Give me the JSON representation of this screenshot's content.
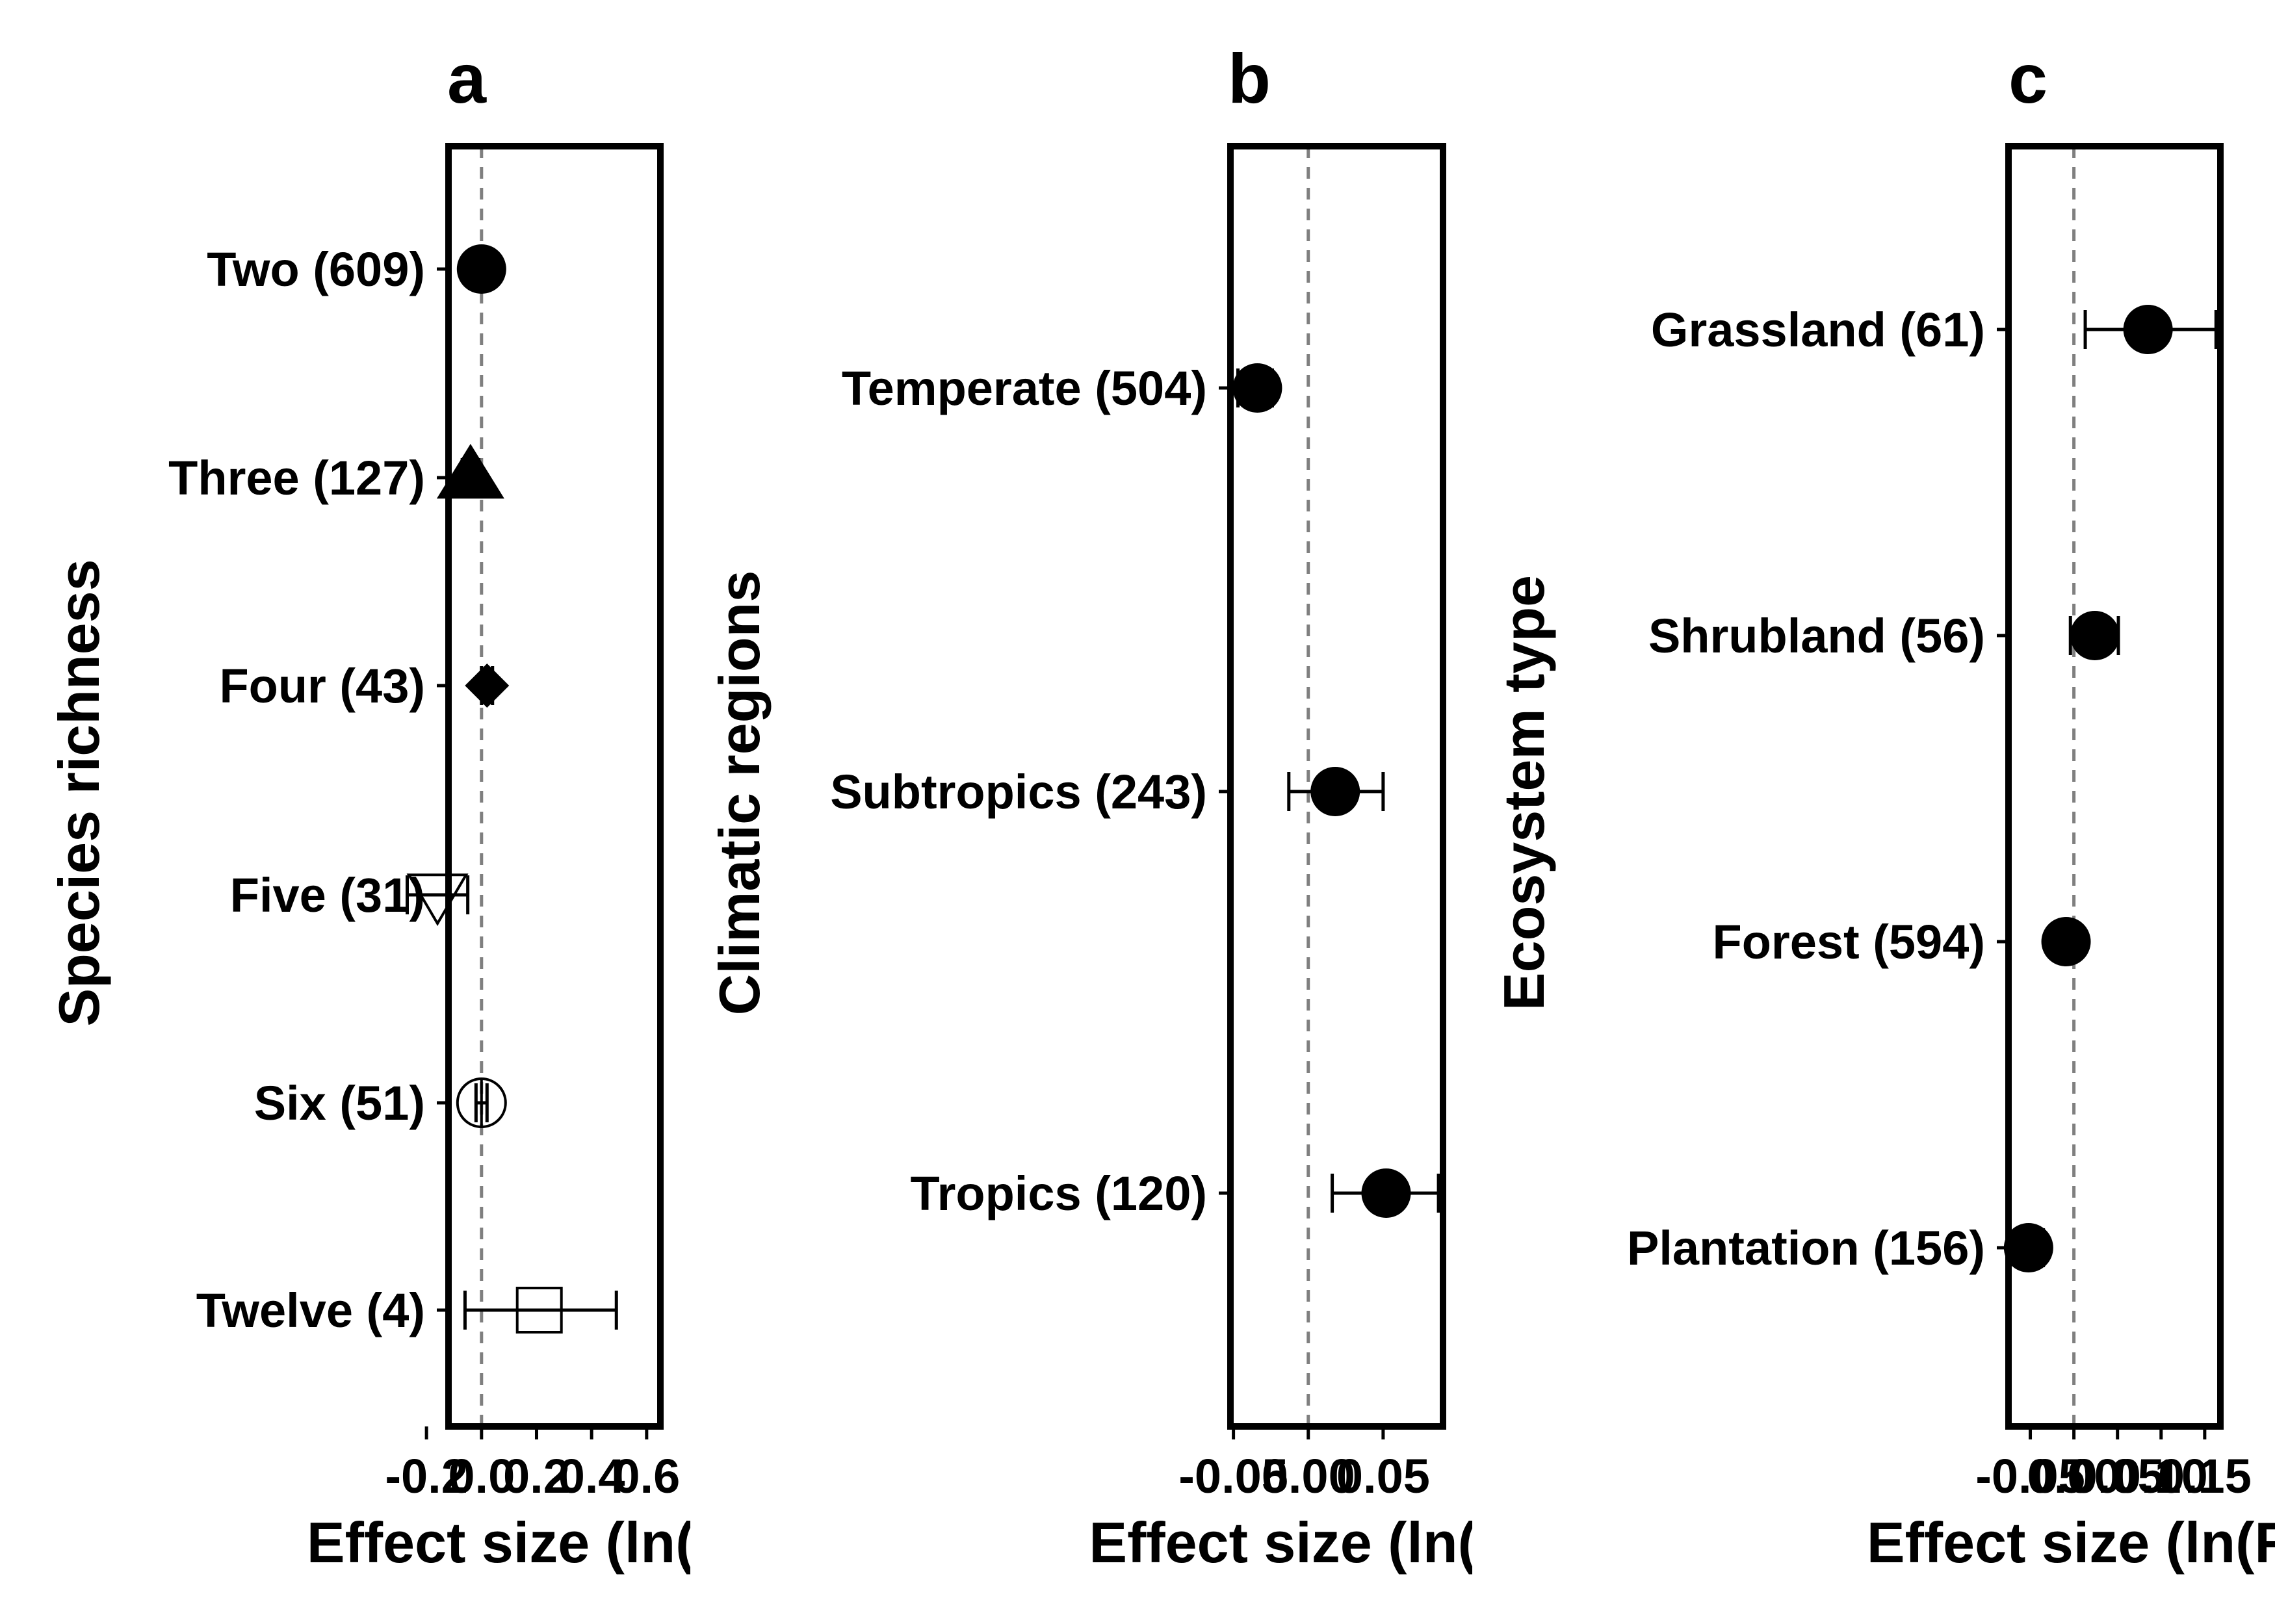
{
  "chart_data": [
    {
      "type": "scatter",
      "panel_label": "a",
      "ylabel": "Species richness",
      "xlabel": "Effect size (ln(RR))",
      "xlim": [
        -0.12,
        0.65
      ],
      "xticks": [
        "-0.2",
        "0.0",
        "0.2",
        "0.4",
        "0.6"
      ],
      "xtick_values": [
        -0.2,
        0.0,
        0.2,
        0.4,
        0.6
      ],
      "reference_line": 0,
      "categories": [
        "Two  (609)",
        "Three  (127)",
        "Four  (43)",
        "Five  (31)",
        "Six  (51)",
        "Twelve  (4)"
      ],
      "points": [
        {
          "label": "Two  (609)",
          "mean": 0.0,
          "ci_low": -0.01,
          "ci_high": 0.01,
          "marker": "filled-circle"
        },
        {
          "label": "Three  (127)",
          "mean": -0.04,
          "ci_low": -0.07,
          "ci_high": -0.01,
          "marker": "filled-triangle-up"
        },
        {
          "label": "Four  (43)",
          "mean": 0.02,
          "ci_low": 0.0,
          "ci_high": 0.04,
          "marker": "filled-diamond"
        },
        {
          "label": "Five  (31)",
          "mean": -0.16,
          "ci_low": -0.27,
          "ci_high": -0.05,
          "marker": "open-triangle-down"
        },
        {
          "label": "Six  (51)",
          "mean": 0.0,
          "ci_low": -0.02,
          "ci_high": 0.02,
          "marker": "open-circle-plus"
        },
        {
          "label": "Twelve  (4)",
          "mean": 0.21,
          "ci_low": -0.06,
          "ci_high": 0.49,
          "marker": "open-square"
        }
      ]
    },
    {
      "type": "scatter",
      "panel_label": "b",
      "ylabel": "Climatic regions",
      "xlabel": "Effect size (ln(RR))",
      "xlim": [
        -0.052,
        0.09
      ],
      "xticks": [
        "-0.05",
        "0.00",
        "0.05"
      ],
      "xtick_values": [
        -0.05,
        0.0,
        0.05
      ],
      "reference_line": 0,
      "categories": [
        "Temperate (504)",
        "Subtropics (243)",
        "Tropics (120)"
      ],
      "points": [
        {
          "label": "Temperate (504)",
          "mean": -0.034,
          "ci_low": -0.047,
          "ci_high": -0.024,
          "marker": "filled-circle"
        },
        {
          "label": "Subtropics (243)",
          "mean": 0.018,
          "ci_low": -0.013,
          "ci_high": 0.05,
          "marker": "filled-circle"
        },
        {
          "label": "Tropics (120)",
          "mean": 0.052,
          "ci_low": 0.016,
          "ci_high": 0.087,
          "marker": "filled-circle"
        }
      ]
    },
    {
      "type": "scatter",
      "panel_label": "c",
      "ylabel": "Ecosystem type",
      "xlabel": "Effect size (ln(RR))",
      "xlim": [
        -0.075,
        0.168
      ],
      "xticks": [
        "-0.05",
        "0.00",
        "0.05",
        "0.10",
        "0.15"
      ],
      "xtick_values": [
        -0.05,
        0.0,
        0.05,
        0.1,
        0.15
      ],
      "reference_line": 0,
      "categories": [
        "Grassland  (61)",
        "Shrubland  (56)",
        "Forest  (594)",
        "Plantation  (156)"
      ],
      "points": [
        {
          "label": "Grassland  (61)",
          "mean": 0.085,
          "ci_low": 0.013,
          "ci_high": 0.163,
          "marker": "filled-circle"
        },
        {
          "label": "Shrubland  (56)",
          "mean": 0.024,
          "ci_low": -0.004,
          "ci_high": 0.051,
          "marker": "filled-circle"
        },
        {
          "label": "Forest  (594)",
          "mean": -0.009,
          "ci_low": -0.022,
          "ci_high": 0.004,
          "marker": "filled-circle"
        },
        {
          "label": "Plantation  (156)",
          "mean": -0.052,
          "ci_low": -0.067,
          "ci_high": -0.035,
          "marker": "filled-circle"
        }
      ]
    }
  ]
}
